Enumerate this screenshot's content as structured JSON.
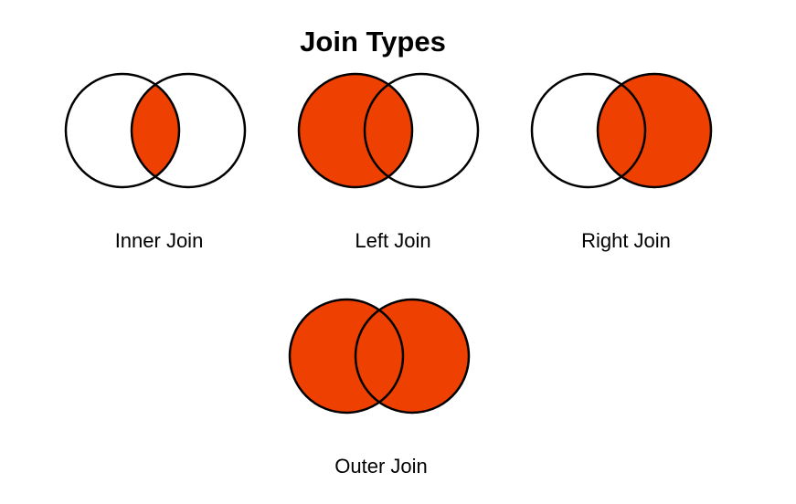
{
  "title": "Join Types",
  "colors": {
    "fill": "#EE4000",
    "stroke": "#000000",
    "background": "#FFFFFF"
  },
  "diagrams": [
    {
      "id": "inner",
      "label": "Inner Join",
      "fill_left": false,
      "fill_intersection": true,
      "fill_right": false
    },
    {
      "id": "left",
      "label": "Left Join",
      "fill_left": true,
      "fill_intersection": true,
      "fill_right": false
    },
    {
      "id": "right",
      "label": "Right Join",
      "fill_left": false,
      "fill_intersection": true,
      "fill_right": true
    },
    {
      "id": "outer",
      "label": "Outer Join",
      "fill_left": true,
      "fill_intersection": true,
      "fill_right": true
    }
  ]
}
